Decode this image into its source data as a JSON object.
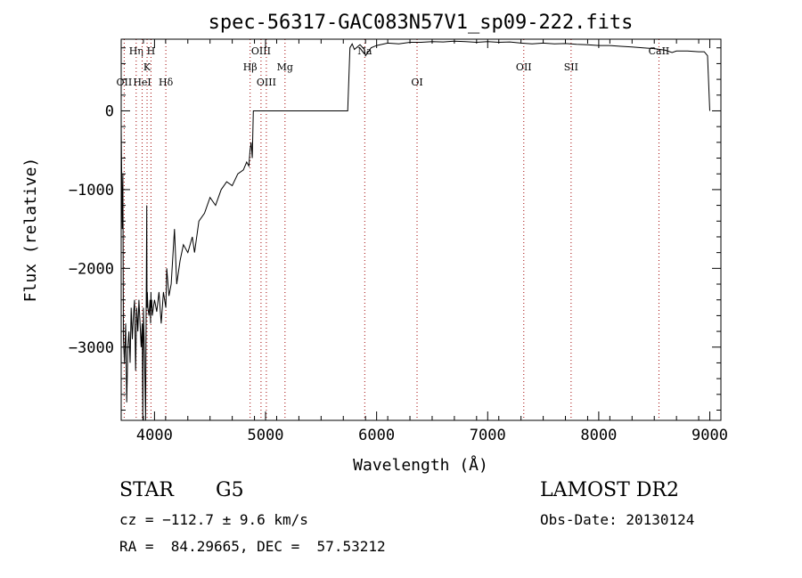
{
  "chart_data": {
    "type": "line",
    "title": "spec-56317-GAC083N57V1_sp09-222.fits",
    "xlabel": "Wavelength (Å)",
    "ylabel": "Flux (relative)",
    "xlim": [
      3700,
      9100
    ],
    "ylim": [
      -3930,
      910
    ],
    "x_ticks": [
      4000,
      5000,
      6000,
      7000,
      8000,
      9000
    ],
    "x_tick_labels": [
      "4000",
      "5000",
      "6000",
      "7000",
      "8000",
      "9000"
    ],
    "y_ticks": [
      0,
      -1000,
      -2000,
      -3000
    ],
    "y_tick_labels": [
      "0",
      "−1000",
      "−2000",
      "−3000"
    ],
    "grid": false,
    "series": [
      {
        "color": "#000000",
        "x": [
          3700,
          3710,
          3715,
          3720,
          3730,
          3740,
          3750,
          3760,
          3770,
          3780,
          3790,
          3800,
          3810,
          3820,
          3830,
          3840,
          3850,
          3860,
          3870,
          3880,
          3889,
          3895,
          3900,
          3910,
          3920,
          3925,
          3930,
          3933,
          3936,
          3940,
          3950,
          3960,
          3965,
          3968,
          3970,
          3975,
          3980,
          3990,
          4000,
          4020,
          4040,
          4060,
          4080,
          4102,
          4110,
          4130,
          4150,
          4180,
          4200,
          4230,
          4260,
          4300,
          4340,
          4360,
          4400,
          4450,
          4500,
          4550,
          4600,
          4650,
          4700,
          4750,
          4800,
          4830,
          4850,
          4860,
          4870,
          4880,
          4890,
          5000,
          5300,
          5500,
          5700,
          5740,
          5760,
          5780,
          5800,
          5850,
          5890,
          5900,
          5950,
          6000,
          6100,
          6200,
          6300,
          6400,
          6500,
          6600,
          6700,
          6800,
          6900,
          7000,
          7100,
          7200,
          7300,
          7400,
          7500,
          7600,
          7700,
          7800,
          7900,
          8000,
          8100,
          8200,
          8300,
          8400,
          8500,
          8600,
          8660,
          8700,
          8800,
          8900,
          8950,
          8980,
          9000
        ],
        "values": [
          -200,
          -1500,
          -800,
          -2900,
          -3200,
          -2700,
          -3700,
          -3000,
          -2800,
          -3200,
          -2500,
          -2900,
          -2600,
          -2400,
          -3300,
          -2500,
          -2800,
          -2400,
          -2700,
          -3000,
          -2700,
          -3930,
          -2500,
          -3100,
          -3930,
          -2600,
          -1200,
          -2500,
          -2300,
          -2500,
          -2600,
          -2400,
          -2700,
          -2300,
          -2500,
          -2400,
          -2600,
          -2500,
          -2400,
          -2550,
          -2300,
          -2700,
          -2300,
          -2500,
          -2000,
          -2350,
          -2200,
          -1500,
          -2200,
          -1900,
          -1700,
          -1800,
          -1600,
          -1800,
          -1400,
          -1300,
          -1100,
          -1200,
          -1000,
          -900,
          -950,
          -800,
          -750,
          -650,
          -700,
          -500,
          -400,
          -600,
          0,
          0,
          0,
          0,
          0,
          0,
          800,
          850,
          780,
          840,
          780,
          700,
          800,
          830,
          860,
          850,
          870,
          870,
          880,
          875,
          885,
          880,
          870,
          880,
          870,
          875,
          860,
          850,
          860,
          850,
          855,
          845,
          840,
          830,
          830,
          820,
          810,
          800,
          790,
          770,
          740,
          760,
          760,
          750,
          750,
          700,
          0
        ]
      }
    ],
    "lines": [
      {
        "label": "Hη",
        "x": 3835,
        "row": 1
      },
      {
        "label": "H",
        "x": 3968,
        "row": 1
      },
      {
        "label": "K",
        "x": 3933,
        "row": 2
      },
      {
        "label": "OII",
        "x": 3727,
        "row": 3
      },
      {
        "label": "HeI",
        "x": 3889,
        "row": 3
      },
      {
        "label": "Hδ",
        "x": 4102,
        "row": 3
      },
      {
        "label": "OIII",
        "x": 4959,
        "row": 1
      },
      {
        "label": "Hβ",
        "x": 4861,
        "row": 2
      },
      {
        "label": "Mg",
        "x": 5175,
        "row": 2
      },
      {
        "label": "OIII",
        "x": 5007,
        "row": 3
      },
      {
        "label": "Na",
        "x": 5893,
        "row": 1
      },
      {
        "label": "OI",
        "x": 6364,
        "row": 3
      },
      {
        "label": "OII",
        "x": 7325,
        "row": 2
      },
      {
        "label": "SII",
        "x": 7751,
        "row": 2
      },
      {
        "label": "CaII",
        "x": 8542,
        "row": 1
      }
    ]
  },
  "info": {
    "object_class": "STAR",
    "subclass": "G5",
    "survey": "LAMOST DR2",
    "cz": "cz = −112.7 ± 9.6 km/s",
    "obs_date": "Obs-Date: 20130124",
    "coords": "RA =  84.29665, DEC =  57.53212"
  }
}
